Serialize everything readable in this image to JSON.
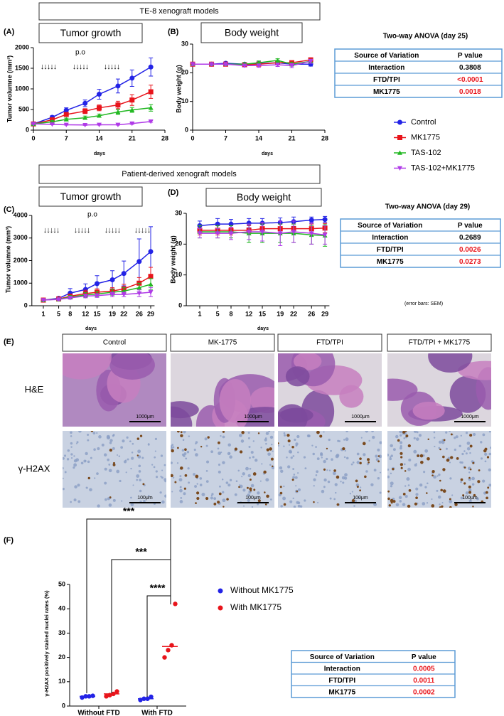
{
  "sections": [
    "TE-8 xenograft models",
    "Patient-derived xenograft models"
  ],
  "legend": [
    {
      "name": "Control",
      "color": "#2323e6",
      "marker": "circle"
    },
    {
      "name": "MK1775",
      "color": "#e8141b",
      "marker": "square"
    },
    {
      "name": "TAS-102",
      "color": "#22b822",
      "marker": "triangle"
    },
    {
      "name": "TAS-102+MK1775",
      "color": "#b03ae8",
      "marker": "triangle-down"
    }
  ],
  "chart_data": [
    {
      "type": "line",
      "label": "(A)",
      "title": "Tumor growth",
      "x_label": "days",
      "y_label": "Tumor volumne (mm³)",
      "annotation": "p.o",
      "dosing": [
        "↓↓↓↓↓",
        "↓↓↓↓↓",
        "↓↓↓↓↓"
      ],
      "x": [
        0,
        4,
        7,
        11,
        14,
        18,
        21,
        25
      ],
      "xlim": [
        0,
        28
      ],
      "xticks": [
        0,
        7,
        14,
        21,
        28
      ],
      "ylim": [
        0,
        2000
      ],
      "yticks": [
        0,
        500,
        1000,
        1500,
        2000
      ],
      "series": [
        {
          "values": [
            150,
            310,
            480,
            650,
            870,
            1070,
            1260,
            1530
          ],
          "errors": [
            20,
            40,
            60,
            80,
            120,
            170,
            200,
            220
          ]
        },
        {
          "values": [
            150,
            250,
            380,
            460,
            540,
            610,
            730,
            930
          ],
          "errors": [
            20,
            30,
            50,
            60,
            70,
            90,
            130,
            160
          ]
        },
        {
          "values": [
            150,
            200,
            260,
            300,
            350,
            440,
            490,
            540
          ],
          "errors": [
            20,
            30,
            30,
            40,
            40,
            60,
            60,
            80
          ]
        },
        {
          "values": [
            150,
            140,
            130,
            125,
            130,
            130,
            160,
            210
          ],
          "errors": [
            10,
            10,
            10,
            10,
            10,
            10,
            20,
            20
          ]
        }
      ]
    },
    {
      "type": "line",
      "label": "(B)",
      "title": "Body weight",
      "x_label": "days",
      "y_label": "Body weight (g)",
      "x": [
        0,
        4,
        7,
        11,
        14,
        18,
        21,
        25
      ],
      "xlim": [
        0,
        28
      ],
      "xticks": [
        0,
        7,
        14,
        21,
        28
      ],
      "ylim": [
        0,
        30
      ],
      "yticks": [
        0,
        10,
        20,
        30
      ],
      "series": [
        {
          "values": [
            23,
            23,
            23.3,
            23,
            23.2,
            23.5,
            23,
            23
          ],
          "errors": [
            0.5,
            0.5,
            0.5,
            0.5,
            0.6,
            0.6,
            0.7,
            0.7
          ]
        },
        {
          "values": [
            23,
            23,
            23,
            22.8,
            23,
            23.5,
            23.5,
            24.5
          ],
          "errors": [
            0.5,
            0.5,
            0.5,
            0.5,
            0.6,
            0.6,
            0.7,
            0.7
          ]
        },
        {
          "values": [
            23,
            23,
            23,
            23,
            23.5,
            24.3,
            23,
            24
          ],
          "errors": [
            0.5,
            0.5,
            0.5,
            0.5,
            0.6,
            0.6,
            0.7,
            0.7
          ]
        },
        {
          "values": [
            23,
            23,
            23,
            22.5,
            22.5,
            22.8,
            22.5,
            24
          ],
          "errors": [
            0.5,
            0.5,
            0.5,
            0.5,
            0.6,
            0.6,
            0.7,
            0.7
          ]
        }
      ]
    },
    {
      "type": "line",
      "label": "(C)",
      "title": "Tumor growth",
      "x_label": "days",
      "y_label": "Tumor volumne (mm³)",
      "annotation": "p.o",
      "dosing": [
        "↓↓↓↓↓",
        "↓↓↓↓↓",
        "↓↓↓↓↓",
        "↓↓↓↓↓"
      ],
      "x": [
        1,
        5,
        8,
        12,
        15,
        19,
        22,
        26,
        29
      ],
      "xlim": [
        -2,
        30
      ],
      "xticks": [
        1,
        5,
        8,
        12,
        15,
        19,
        22,
        26,
        29
      ],
      "ylim": [
        0,
        4000
      ],
      "yticks": [
        0,
        1000,
        2000,
        3000,
        4000
      ],
      "series": [
        {
          "values": [
            250,
            330,
            560,
            720,
            980,
            1150,
            1430,
            1960,
            2400
          ],
          "errors": [
            30,
            60,
            200,
            250,
            350,
            400,
            550,
            1000,
            1100
          ]
        },
        {
          "values": [
            250,
            300,
            420,
            540,
            600,
            650,
            750,
            1000,
            1300
          ],
          "errors": [
            30,
            50,
            100,
            150,
            150,
            150,
            200,
            250,
            400
          ]
        },
        {
          "values": [
            250,
            290,
            380,
            480,
            520,
            600,
            650,
            800,
            950
          ],
          "errors": [
            30,
            50,
            80,
            100,
            120,
            130,
            150,
            200,
            250
          ]
        },
        {
          "values": [
            250,
            280,
            350,
            430,
            450,
            500,
            500,
            550,
            600
          ],
          "errors": [
            30,
            40,
            60,
            80,
            80,
            100,
            100,
            150,
            200
          ]
        }
      ]
    },
    {
      "type": "line",
      "label": "(D)",
      "title": "Body weight",
      "x_label": "days",
      "y_label": "Body weight (g)",
      "x": [
        1,
        5,
        8,
        12,
        15,
        19,
        22,
        26,
        29
      ],
      "xlim": [
        -2,
        30
      ],
      "xticks": [
        1,
        5,
        8,
        12,
        15,
        19,
        22,
        26,
        29
      ],
      "ylim": [
        0,
        30
      ],
      "yticks": [
        0,
        10,
        20,
        30
      ],
      "series": [
        {
          "values": [
            26,
            26.5,
            26.5,
            26.8,
            26.8,
            27,
            27.3,
            27.8,
            28
          ],
          "errors": [
            1.5,
            1.8,
            1.5,
            1.5,
            1.5,
            1.5,
            1.5,
            1,
            1
          ]
        },
        {
          "values": [
            24.5,
            24.5,
            24.5,
            24.5,
            25,
            25,
            25,
            25,
            25.2
          ],
          "errors": [
            1.5,
            1.5,
            1.5,
            1.5,
            1.5,
            1.5,
            1.5,
            1.5,
            1.5
          ]
        },
        {
          "values": [
            24,
            24,
            24,
            23.5,
            23.5,
            23.5,
            23.5,
            23,
            22.8
          ],
          "errors": [
            2,
            2,
            2,
            3,
            3,
            3,
            3,
            3,
            3.5
          ]
        },
        {
          "values": [
            23.5,
            23.5,
            23.5,
            24,
            24,
            23.5,
            24,
            23.5,
            23
          ],
          "errors": [
            1.5,
            1.5,
            2,
            2.5,
            3,
            4,
            3.5,
            3.5,
            3
          ]
        }
      ]
    },
    {
      "type": "dot",
      "label": "(F)",
      "y_label": "γ-H2AX positively stained nuclei rates (%)",
      "categories": [
        "Without FTD",
        "With FTD"
      ],
      "ylim": [
        0,
        50
      ],
      "yticks": [
        0,
        10,
        20,
        30,
        40,
        50
      ],
      "annotations": [
        "***",
        "***",
        "****"
      ],
      "series": [
        {
          "name": "Without MK1775",
          "color": "#2323e6",
          "values": [
            [
              3.5,
              4,
              4,
              4.2
            ],
            [
              2.5,
              3,
              3,
              3.8
            ]
          ],
          "medians": [
            4,
            3
          ]
        },
        {
          "name": "With MK1775",
          "color": "#e8141b",
          "values": [
            [
              4,
              4.5,
              5,
              6
            ],
            [
              20,
              23,
              25,
              42
            ]
          ],
          "medians": [
            5,
            24.5
          ]
        }
      ]
    }
  ],
  "tables": [
    {
      "title": "Two-way ANOVA (day 25)",
      "header": [
        "Source of Variation",
        "P value"
      ],
      "rows": [
        {
          "source": "Interaction",
          "p": "0.3808",
          "color": "#000000"
        },
        {
          "source": "FTD/TPI",
          "p": "<0.0001",
          "color": "#e8141b"
        },
        {
          "source": "MK1775",
          "p": "0.0018",
          "color": "#e8141b"
        }
      ]
    },
    {
      "title": "Two-way ANOVA (day 29)",
      "header": [
        "Source of Variation",
        "P value"
      ],
      "rows": [
        {
          "source": "Interaction",
          "p": "0.2689",
          "color": "#000000"
        },
        {
          "source": "FTD/TPI",
          "p": "0.0026",
          "color": "#e8141b"
        },
        {
          "source": "MK1775",
          "p": "0.0273",
          "color": "#e8141b"
        }
      ]
    },
    {
      "header": [
        "Source of Variation",
        "P value"
      ],
      "rows": [
        {
          "source": "Interaction",
          "p": "0.0005",
          "color": "#e8141b"
        },
        {
          "source": "FTD/TPI",
          "p": "0.0011",
          "color": "#e8141b"
        },
        {
          "source": "MK1775",
          "p": "0.0002",
          "color": "#e8141b"
        }
      ]
    }
  ],
  "note": "(error bars: SEM)",
  "histology": {
    "label": "(E)",
    "columns": [
      "Control",
      "MK-1775",
      "FTD/TPI",
      "FTD/TPI + MK1775"
    ],
    "rows": [
      {
        "label": "H&E",
        "scale_bar": "1000μm"
      },
      {
        "label": "γ-H2AX",
        "scale_bar": "100μm"
      }
    ]
  }
}
